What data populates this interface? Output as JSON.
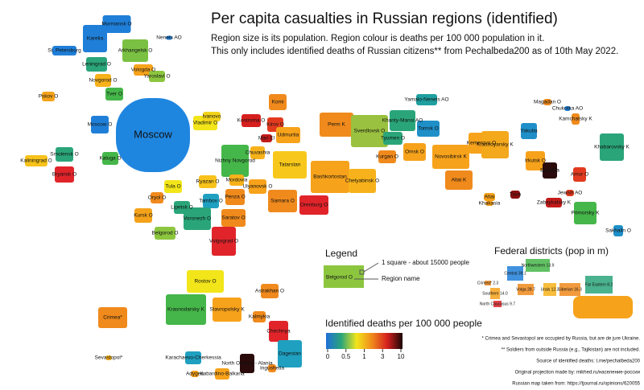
{
  "title": "Per capita casualties in Russian regions (identified)",
  "subtitle": [
    "Region size is its population. Region colour is deaths per 100 000 population in it.",
    "This only includes identified deaths of Russian citizens** from Pechalbeda200 as of 10th May 2022."
  ],
  "regions": [
    {
      "label": "Murmansk O",
      "color": "#1f7fd8"
    },
    {
      "label": "Karelia",
      "color": "#1f7fd8"
    },
    {
      "label": "Nenets AO",
      "color": "#1f7fd8"
    },
    {
      "label": "St. Petersburg",
      "color": "#1f7fd8"
    },
    {
      "label": "Arkhangelsk O",
      "color": "#7ac143"
    },
    {
      "label": "Leningrad O",
      "color": "#2aa57a"
    },
    {
      "label": "Vologda O",
      "color": "#f7a21b"
    },
    {
      "label": "Yaroslavl O",
      "color": "#8cc63f"
    },
    {
      "label": "Novgorod O",
      "color": "#f7b21b"
    },
    {
      "label": "Pskov O",
      "color": "#f4a21a"
    },
    {
      "label": "Tver O",
      "color": "#45b649"
    },
    {
      "label": "Moscow O",
      "color": "#1f7fd8"
    },
    {
      "label": "Moscow",
      "color": "#1f86e0"
    },
    {
      "label": "Vladimir O",
      "color": "#f2e51a"
    },
    {
      "label": "Ivanovo",
      "color": "#f2d31a"
    },
    {
      "label": "Kostroma O",
      "color": "#d6201f"
    },
    {
      "label": "Komi",
      "color": "#f08a1c"
    },
    {
      "label": "Kirov O",
      "color": "#e23a1f"
    },
    {
      "label": "Mari El",
      "color": "#c31a1a"
    },
    {
      "label": "Kaliningrad O",
      "color": "#f7c21b"
    },
    {
      "label": "Smolensk O",
      "color": "#2aa57a"
    },
    {
      "label": "Bryansk O",
      "color": "#e0242a"
    },
    {
      "label": "Kaluga O",
      "color": "#45b649"
    },
    {
      "label": "Tula O",
      "color": "#f2e51a"
    },
    {
      "label": "Nizhny Novgorod",
      "color": "#45b649"
    },
    {
      "label": "Chuvashia",
      "color": "#f7b21b"
    },
    {
      "label": "Tatarstan",
      "color": "#f7c81b"
    },
    {
      "label": "Udmurtia",
      "color": "#f7a21b"
    },
    {
      "label": "Perm K",
      "color": "#f08a1c"
    },
    {
      "label": "Sverdlovsk O",
      "color": "#9ac13f"
    },
    {
      "label": "Khanty-Mansi AO",
      "color": "#2aa57a"
    },
    {
      "label": "Yamalo-Nenets AO",
      "color": "#1f9fa0"
    },
    {
      "label": "Tomsk O",
      "color": "#1f8fc8"
    },
    {
      "label": "Tyumen O",
      "color": "#2aa57a"
    },
    {
      "label": "Omsk O",
      "color": "#f7a21b"
    },
    {
      "label": "Kurgan O",
      "color": "#f08a1c"
    },
    {
      "label": "Novosibirsk K",
      "color": "#f7a21b"
    },
    {
      "label": "Kemerovo O",
      "color": "#f7a21b"
    },
    {
      "label": "Krasnoyarsky K",
      "color": "#f4a81b"
    },
    {
      "label": "Yakutia",
      "color": "#1f8fc8"
    },
    {
      "label": "Magadan O",
      "color": "#f08a1c"
    },
    {
      "label": "Chukotka AO",
      "color": "#1f7fd8"
    },
    {
      "label": "Kamchatsky K",
      "color": "#f08a1c"
    },
    {
      "label": "Khabarovsky K",
      "color": "#2aa57a"
    },
    {
      "label": "Irkutsk O",
      "color": "#f7a21b"
    },
    {
      "label": "Buryatia",
      "color": "#2a0a0a"
    },
    {
      "label": "Amur O",
      "color": "#e23a1f"
    },
    {
      "label": "Jewish AO",
      "color": "#e23a1f"
    },
    {
      "label": "Altai K",
      "color": "#f08a1c"
    },
    {
      "label": "Altai",
      "color": "#f7a21b"
    },
    {
      "label": "Khakasia",
      "color": "#f7a21b"
    },
    {
      "label": "Tuva",
      "color": "#8a1010"
    },
    {
      "label": "Zabaykalsky K",
      "color": "#c31a1a"
    },
    {
      "label": "Primorsky K",
      "color": "#45b649"
    },
    {
      "label": "Sakhalin O",
      "color": "#1f8fc8"
    },
    {
      "label": "Bashkortostan",
      "color": "#f7a21b"
    },
    {
      "label": "Chelyabinsk O",
      "color": "#f7b21b"
    },
    {
      "label": "Samara O",
      "color": "#f08a1c"
    },
    {
      "label": "Orenburg O",
      "color": "#e0242a"
    },
    {
      "label": "Ulyanovsk O",
      "color": "#f7a21b"
    },
    {
      "label": "Penza O",
      "color": "#f08a1c"
    },
    {
      "label": "Mordovia",
      "color": "#f7b21b"
    },
    {
      "label": "Ryazan O",
      "color": "#f7c21b"
    },
    {
      "label": "Tambov O",
      "color": "#1fa0c0"
    },
    {
      "label": "Lipetsk O",
      "color": "#2aa57a"
    },
    {
      "label": "Oryol O",
      "color": "#f08a1c"
    },
    {
      "label": "Kursk O",
      "color": "#f4a21a"
    },
    {
      "label": "Voronezh O",
      "color": "#2aa57a"
    },
    {
      "label": "Belgorod O",
      "color": "#8cc63f"
    },
    {
      "label": "Saratov O",
      "color": "#f08a1c"
    },
    {
      "label": "Volgograd O",
      "color": "#e0242a"
    },
    {
      "label": "Rostov O",
      "color": "#f2e51a"
    },
    {
      "label": "Astrakhan O",
      "color": "#f08a1c"
    },
    {
      "label": "Krasnodarsky K",
      "color": "#45b649"
    },
    {
      "label": "Stavropolsky K",
      "color": "#f7a21b"
    },
    {
      "label": "Kalmykia",
      "color": "#f08a1c"
    },
    {
      "label": "Crimea*",
      "color": "#f08a1c"
    },
    {
      "label": "Sevastopol*",
      "color": "#f7b21b"
    },
    {
      "label": "Karachaevo-Cherkessia",
      "color": "#1fa0c0"
    },
    {
      "label": "Adygea",
      "color": "#f7a21b"
    },
    {
      "label": "Kabardino-Balkaria",
      "color": "#f7a21b"
    },
    {
      "label": "North Ossetia - Alania",
      "color": "#2a0a0a"
    },
    {
      "label": "Ingushetia",
      "color": "#f08a1c"
    },
    {
      "label": "Chechnya",
      "color": "#e0242a"
    },
    {
      "label": "Dagestan",
      "color": "#1fa0c0"
    }
  ],
  "legend": {
    "title": "Legend",
    "example": "Belgorod O",
    "square": "1 square - about 15000 people",
    "name": "Region name"
  },
  "scale": {
    "title": "Identified deaths per 100 000 people",
    "ticks": [
      0,
      0.5,
      1,
      3,
      10
    ],
    "colors": [
      "#1f6fd8",
      "#2aa57a",
      "#f2e51a",
      "#f08a1c",
      "#d6201f",
      "#1a0505"
    ]
  },
  "districts": {
    "title": "Federal districts (pop in m)",
    "labels": [
      "Central 39.1",
      "Northwestern 13.9",
      "Crimea* 2.3",
      "Southern 14.0",
      "North Caucasus 9.7",
      "Volga 28.7",
      "Urals 12.3",
      "Siberian 16.3",
      "Far Eastern 8.2"
    ]
  },
  "notes": [
    "* Crimea and Sevastopol are occupied by Russia, but are de jure Ukraine.",
    "** Soldiers from outside Russia (e.g., Tajikistan) are not included.",
    "Source of identified deaths: t.me/pechalbeda200",
    "Original projection made by: mikhed.ru/население-россии",
    "Russian map taken from: https://tjournal.ru/opinions/620055"
  ]
}
